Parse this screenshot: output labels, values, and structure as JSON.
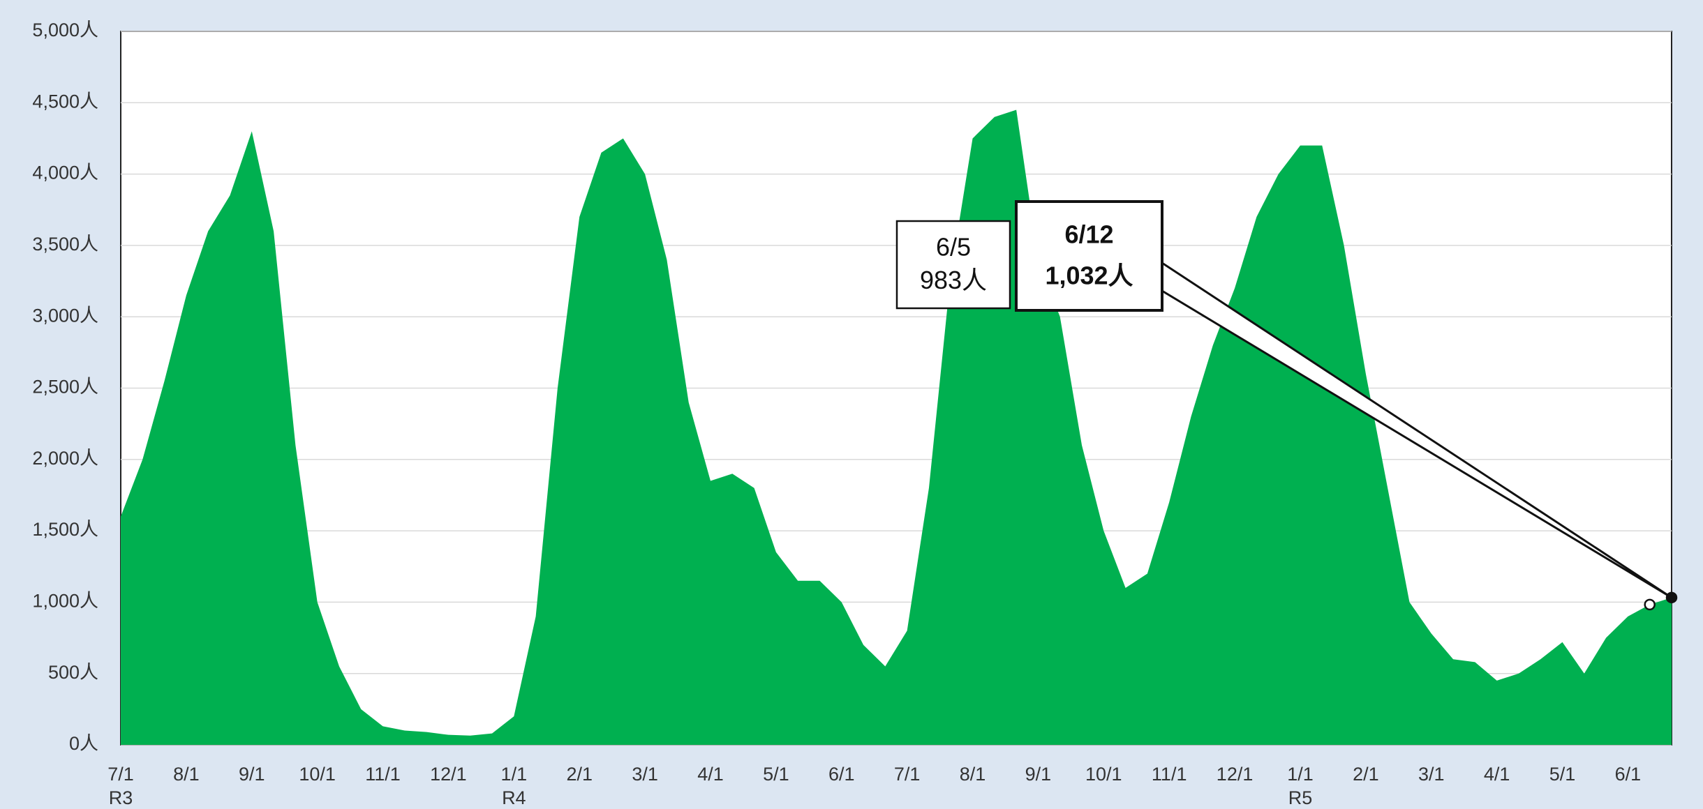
{
  "chart_data": {
    "type": "area",
    "color": "#00b050",
    "grid": true,
    "categories": [
      "7/1",
      null,
      null,
      "8/1",
      null,
      null,
      "9/1",
      null,
      null,
      "10/1",
      null,
      null,
      "11/1",
      null,
      null,
      "12/1",
      null,
      null,
      "1/1",
      null,
      null,
      "2/1",
      null,
      null,
      "3/1",
      null,
      null,
      "4/1",
      null,
      null,
      "5/1",
      null,
      null,
      "6/1",
      null,
      null,
      "7/1",
      null,
      null,
      "8/1",
      null,
      null,
      "9/1",
      null,
      null,
      "10/1",
      null,
      null,
      "11/1",
      null,
      null,
      "12/1",
      null,
      null,
      "1/1",
      null,
      null,
      "2/1",
      null,
      null,
      "3/1",
      null,
      null,
      "4/1",
      null,
      null,
      "5/1",
      null,
      null,
      "6/1",
      null,
      null
    ],
    "eras": [
      {
        "index": 0,
        "label": "R3"
      },
      {
        "index": 18,
        "label": "R4"
      },
      {
        "index": 54,
        "label": "R5"
      }
    ],
    "series": [
      {
        "values": [
          1600,
          2000,
          2550,
          3150,
          3600,
          3850,
          4300,
          3600,
          2100,
          1000,
          550,
          250,
          130,
          100,
          90,
          70,
          65,
          80,
          200,
          900,
          2500,
          3700,
          4150,
          4250,
          4000,
          3400,
          2400,
          1850,
          1900,
          1800,
          1350,
          1150,
          1150,
          1000,
          700,
          550,
          800,
          1800,
          3300,
          4250,
          4400,
          4450,
          3400,
          3000,
          2100,
          1500,
          1100,
          1200,
          1700,
          2300,
          2800,
          3200,
          3700,
          4000,
          4200,
          4200,
          3500,
          2600,
          1800,
          1000,
          780,
          600,
          580,
          450,
          500,
          600,
          720,
          500,
          750,
          900,
          983,
          1032
        ]
      }
    ],
    "ylim": [
      0,
      5000
    ],
    "yticks": [
      {
        "value": 0,
        "label": "0人"
      },
      {
        "value": 500,
        "label": "500人"
      },
      {
        "value": 1000,
        "label": "1,000人"
      },
      {
        "value": 1500,
        "label": "1,500人"
      },
      {
        "value": 2000,
        "label": "2,000人"
      },
      {
        "value": 2500,
        "label": "2,500人"
      },
      {
        "value": 3000,
        "label": "3,000人"
      },
      {
        "value": 3500,
        "label": "3,500人"
      },
      {
        "value": 4000,
        "label": "4,000人"
      },
      {
        "value": 4500,
        "label": "4,500人"
      },
      {
        "value": 5000,
        "label": "5,000人"
      }
    ],
    "callouts": [
      {
        "index": 70,
        "date": "6/5",
        "label": "983人"
      },
      {
        "index": 71,
        "date": "6/12",
        "label": "1,032人"
      }
    ]
  }
}
